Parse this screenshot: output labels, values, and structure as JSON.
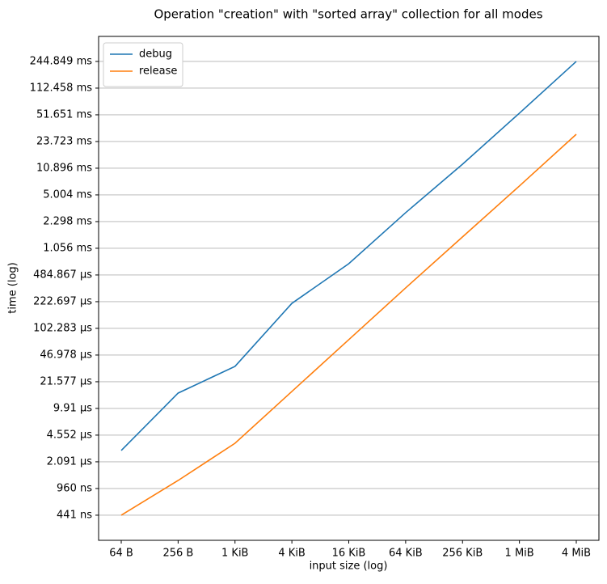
{
  "chart_data": {
    "type": "line",
    "title": "Operation \"creation\" with \"sorted array\" collection for all modes",
    "x_label": "input size (log)",
    "y_label": "time (log)",
    "categories": [
      "64 B",
      "256 B",
      "1 KiB",
      "4 KiB",
      "16 KiB",
      "64 KiB",
      "256 KiB",
      "1 MiB",
      "4 MiB"
    ],
    "series": [
      {
        "name": "debug",
        "color": "#1f77b4",
        "values": [
          2904,
          15500,
          33760,
          212000,
          674000,
          2980000,
          12250000,
          54200000,
          244849000
        ]
      },
      {
        "name": "release",
        "color": "#ff7f0e",
        "values": [
          441,
          1214,
          3590,
          16250,
          73500,
          332500,
          1470000,
          6490000,
          29300000
        ]
      }
    ],
    "yscale": "log",
    "ylim": [
      212,
      508000000
    ],
    "yticks": [
      {
        "value": 441,
        "label": "441 ns"
      },
      {
        "value": 960,
        "label": "960 ns"
      },
      {
        "value": 2091,
        "label": "2.091 µs"
      },
      {
        "value": 4552,
        "label": "4.552 µs"
      },
      {
        "value": 9910,
        "label": "9.91 µs"
      },
      {
        "value": 21577,
        "label": "21.577 µs"
      },
      {
        "value": 46978,
        "label": "46.978 µs"
      },
      {
        "value": 102283,
        "label": "102.283 µs"
      },
      {
        "value": 222697,
        "label": "222.697 µs"
      },
      {
        "value": 484867,
        "label": "484.867 µs"
      },
      {
        "value": 1056000,
        "label": "1.056 ms"
      },
      {
        "value": 2298000,
        "label": "2.298 ms"
      },
      {
        "value": 5004000,
        "label": "5.004 ms"
      },
      {
        "value": 10896000,
        "label": "10.896 ms"
      },
      {
        "value": 23723000,
        "label": "23.723 ms"
      },
      {
        "value": 51651000,
        "label": "51.651 ms"
      },
      {
        "value": 112458000,
        "label": "112.458 ms"
      },
      {
        "value": 244849000,
        "label": "244.849 ms"
      }
    ],
    "grid": true,
    "legend": "upper left"
  }
}
